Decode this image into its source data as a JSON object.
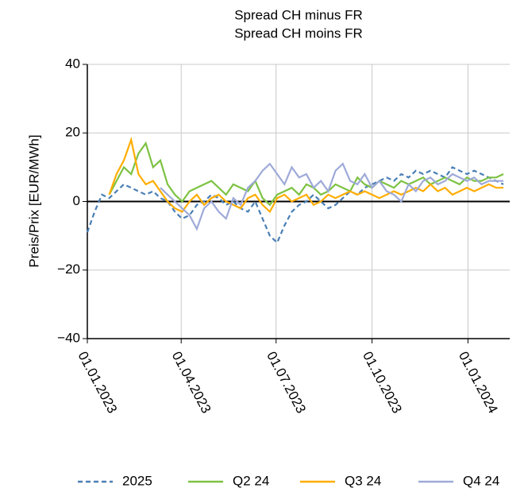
{
  "chart_data": {
    "type": "line",
    "title": "Spread CH minus FR",
    "subtitle": "Spread CH moins FR",
    "ylabel": "Preis/Prix [EUR/MWh]",
    "x": [
      "2023-01-01",
      "2023-01-08",
      "2023-01-15",
      "2023-01-22",
      "2023-01-29",
      "2023-02-05",
      "2023-02-12",
      "2023-02-19",
      "2023-02-26",
      "2023-03-05",
      "2023-03-12",
      "2023-03-19",
      "2023-03-26",
      "2023-04-02",
      "2023-04-09",
      "2023-04-16",
      "2023-04-23",
      "2023-04-30",
      "2023-05-07",
      "2023-05-14",
      "2023-05-21",
      "2023-05-28",
      "2023-06-04",
      "2023-06-11",
      "2023-06-18",
      "2023-06-25",
      "2023-07-02",
      "2023-07-09",
      "2023-07-16",
      "2023-07-23",
      "2023-07-30",
      "2023-08-06",
      "2023-08-13",
      "2023-08-20",
      "2023-08-27",
      "2023-09-03",
      "2023-09-10",
      "2023-09-17",
      "2023-09-24",
      "2023-10-01",
      "2023-10-08",
      "2023-10-15",
      "2023-10-22",
      "2023-10-29",
      "2023-11-05",
      "2023-11-12",
      "2023-11-19",
      "2023-11-26",
      "2023-12-03",
      "2023-12-10",
      "2023-12-17",
      "2023-12-24",
      "2023-12-31",
      "2024-01-07",
      "2024-01-14",
      "2024-01-21",
      "2024-01-28",
      "2024-02-04"
    ],
    "series": [
      {
        "name": "2025",
        "color": "#4a7fb5",
        "dashed": true,
        "values": [
          -9,
          -3,
          2,
          1,
          3,
          5,
          4,
          3,
          2,
          3,
          1,
          0,
          -3,
          -5,
          -4,
          -1,
          0,
          2,
          1,
          -1,
          0,
          -2,
          -3,
          0,
          -5,
          -10,
          -12,
          -7,
          -3,
          -1,
          0,
          2,
          0,
          -2,
          -1,
          1,
          3,
          2,
          4,
          5,
          6,
          7,
          6,
          8,
          7,
          9,
          8,
          9,
          8,
          7,
          10,
          9,
          8,
          9,
          8,
          7,
          6,
          5
        ]
      },
      {
        "name": "Q2 24",
        "color": "#7dc242",
        "dashed": false,
        "values": [
          null,
          null,
          null,
          2,
          6,
          10,
          8,
          14,
          17,
          10,
          12,
          5,
          2,
          0,
          3,
          4,
          5,
          6,
          4,
          2,
          5,
          4,
          3,
          6,
          1,
          -1,
          2,
          3,
          4,
          2,
          5,
          4,
          2,
          3,
          5,
          4,
          3,
          7,
          5,
          4,
          6,
          5,
          4,
          6,
          5,
          6,
          7,
          5,
          6,
          7,
          6,
          5,
          7,
          6,
          6,
          7,
          7,
          8
        ]
      },
      {
        "name": "Q3 24",
        "color": "#ffad00",
        "dashed": false,
        "values": [
          null,
          null,
          null,
          2,
          8,
          12,
          18,
          8,
          5,
          6,
          3,
          0,
          -2,
          -3,
          0,
          2,
          -1,
          1,
          2,
          0,
          -1,
          -2,
          1,
          2,
          -1,
          -3,
          1,
          2,
          0,
          1,
          2,
          -1,
          0,
          2,
          1,
          2,
          3,
          2,
          3,
          2,
          1,
          2,
          3,
          2,
          3,
          4,
          3,
          5,
          3,
          4,
          2,
          3,
          4,
          3,
          4,
          5,
          4,
          4
        ]
      },
      {
        "name": "Q4 24",
        "color": "#9eaad8",
        "dashed": false,
        "values": [
          null,
          null,
          null,
          null,
          null,
          null,
          null,
          null,
          null,
          null,
          4,
          2,
          0,
          -2,
          -4,
          -8,
          -2,
          0,
          -3,
          -5,
          1,
          -1,
          4,
          6,
          9,
          11,
          8,
          5,
          10,
          7,
          8,
          4,
          6,
          3,
          9,
          11,
          6,
          5,
          8,
          4,
          6,
          3,
          2,
          0,
          5,
          3,
          6,
          7,
          5,
          6,
          8,
          7,
          6,
          7,
          5,
          6,
          6,
          6
        ]
      }
    ],
    "xlim": [
      "2023-01-01",
      "2024-02-10"
    ],
    "xticks": [
      {
        "value": "2023-01-01",
        "label": "01.01.2023"
      },
      {
        "value": "2023-04-01",
        "label": "01.04.2023"
      },
      {
        "value": "2023-07-01",
        "label": "01.07.2023"
      },
      {
        "value": "2023-10-01",
        "label": "01.10.2023"
      },
      {
        "value": "2024-01-01",
        "label": "01.01.2024"
      }
    ],
    "ylim": [
      -40,
      40
    ],
    "yticks": [
      {
        "value": -40,
        "label": "−40"
      },
      {
        "value": -20,
        "label": "−20"
      },
      0,
      20,
      40
    ],
    "grid": true,
    "legend": "bottom"
  }
}
